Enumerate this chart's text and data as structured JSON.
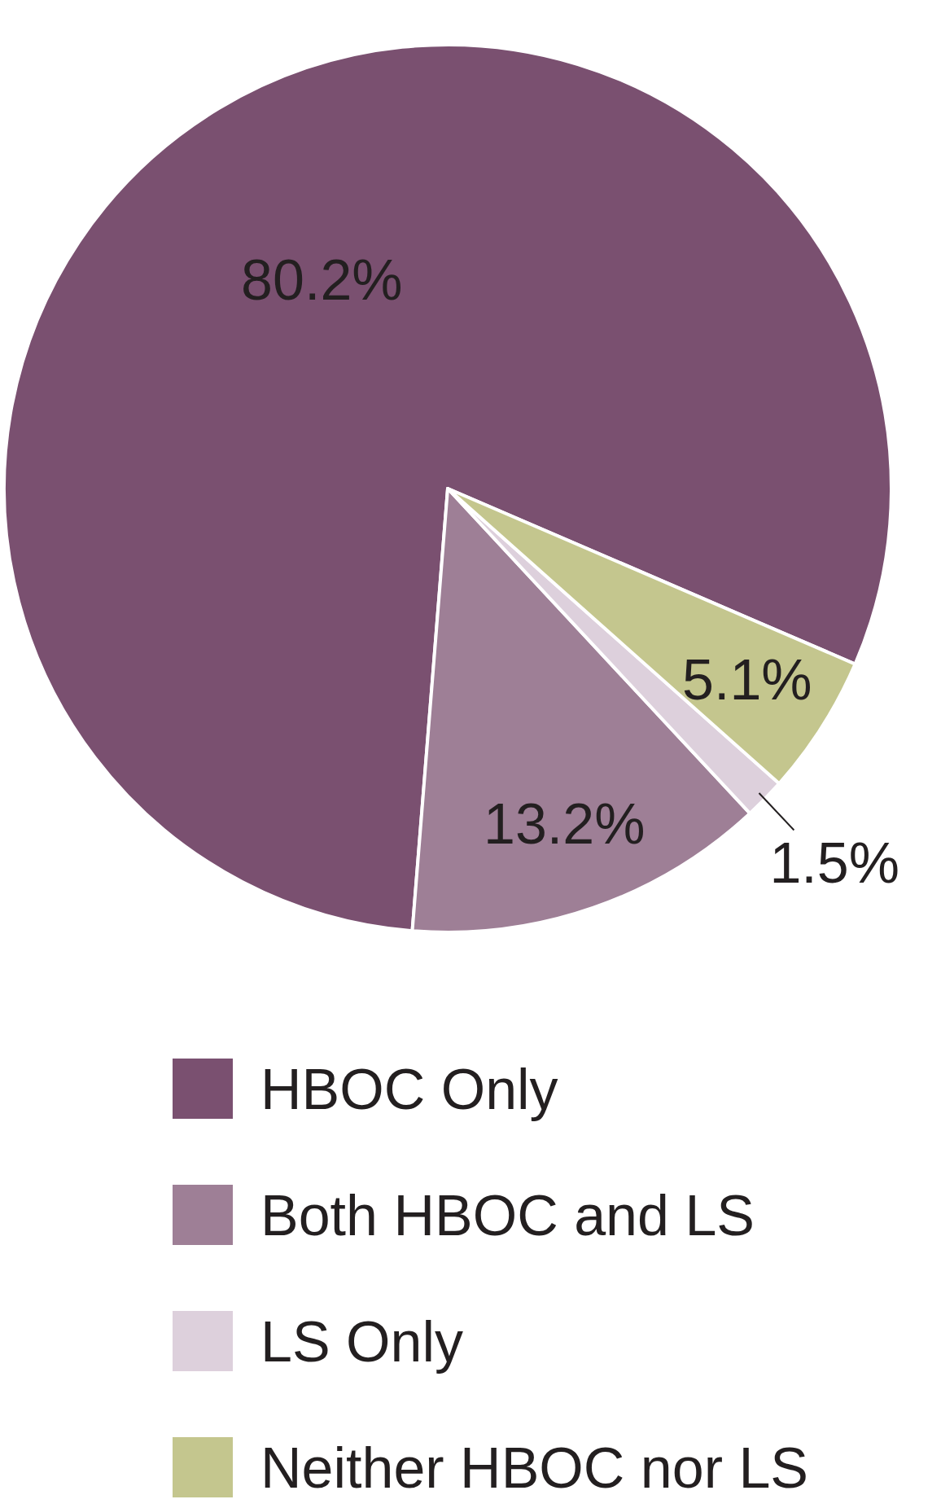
{
  "chart_data": {
    "type": "pie",
    "categories": [
      "HBOC Only",
      "Both HBOC and LS",
      "LS Only",
      "Neither HBOC nor LS"
    ],
    "values": [
      80.2,
      13.2,
      1.5,
      5.1
    ],
    "colors": [
      "#7a5070",
      "#9e7f96",
      "#ddd0dc",
      "#c4c68e"
    ],
    "value_labels": [
      "80.2%",
      "13.2%",
      "1.5%",
      "5.1%"
    ],
    "legend": "bottom"
  }
}
